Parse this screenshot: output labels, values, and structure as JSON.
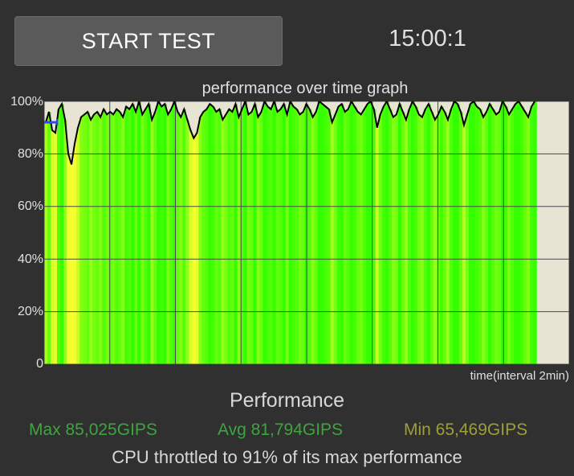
{
  "header": {
    "start_button_label": "START TEST",
    "timer": "15:00:1"
  },
  "graph": {
    "title": "performance over time graph",
    "xlabel": "time(interval 2min)",
    "y_ticks": [
      "100%",
      "80%",
      "60%",
      "40%",
      "20%",
      "0"
    ]
  },
  "chart_data": {
    "type": "line",
    "title": "performance over time graph",
    "xlabel": "time(interval 2min)",
    "ylabel": "",
    "ylim": [
      0,
      100
    ],
    "y_ticks": [
      0,
      20,
      40,
      60,
      80,
      100
    ],
    "x_interval_minutes": 2,
    "x_range_minutes": [
      0,
      16
    ],
    "data_extent_minutes": 15,
    "grid": true,
    "colors": {
      "line": "#000000",
      "fill_high": "#33ff00",
      "fill_low": "#f5ff30",
      "empty": "#e8e4d4",
      "marker": "#3344ff"
    },
    "series": [
      {
        "values": [
          92,
          96,
          89,
          88,
          97,
          99,
          93,
          80,
          76,
          84,
          90,
          94,
          95,
          96,
          93,
          95,
          96,
          94,
          97,
          95,
          96,
          95,
          97,
          96,
          94,
          98,
          97,
          99,
          96,
          100,
          95,
          97,
          99,
          93,
          96,
          100,
          98,
          99,
          95,
          97,
          100,
          96,
          94,
          97,
          93,
          89,
          86,
          88,
          94,
          96,
          97,
          99,
          98,
          96,
          97,
          93,
          95,
          97,
          96,
          99,
          94,
          97,
          100,
          95,
          96,
          99,
          94,
          96,
          100,
          98,
          97,
          100,
          96,
          97,
          99,
          95,
          100,
          98,
          97,
          95,
          96,
          99,
          97,
          94,
          96,
          100,
          99,
          98,
          97,
          92,
          95,
          98,
          99,
          96,
          97,
          100,
          98,
          96,
          95,
          97,
          99,
          100,
          97,
          90,
          95,
          98,
          100,
          97,
          94,
          95,
          99,
          96,
          93,
          97,
          100,
          98,
          95,
          94,
          97,
          99,
          96,
          93,
          95,
          98,
          96,
          93,
          97,
          100,
          99,
          96,
          91,
          95,
          99,
          100,
          98,
          97,
          94,
          96,
          99,
          97,
          95,
          96,
          100,
          98,
          95,
          97,
          99,
          100,
          98,
          96,
          94,
          98,
          100
        ]
      }
    ],
    "marker": {
      "y": 92
    }
  },
  "performance": {
    "title": "Performance",
    "max": "Max 85,025GIPS",
    "avg": "Avg 81,794GIPS",
    "min": "Min 65,469GIPS",
    "throttle": "CPU throttled to 91% of its max performance"
  }
}
